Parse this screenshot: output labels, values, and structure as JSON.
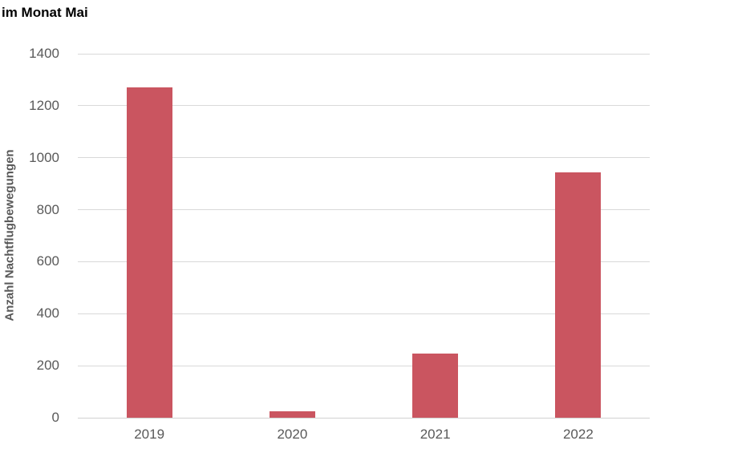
{
  "chart_data": {
    "type": "bar",
    "title": "im Monat Mai",
    "xlabel": "",
    "ylabel": "Anzahl Nachtflugbewegungen",
    "categories": [
      "2019",
      "2020",
      "2021",
      "2022"
    ],
    "values": [
      1270,
      25,
      248,
      945
    ],
    "yticks": [
      0,
      200,
      400,
      600,
      800,
      1000,
      1200,
      1400
    ],
    "ylim": [
      0,
      1400
    ],
    "grid": true,
    "legend_position": "none",
    "bar_color": "#ca5560",
    "gridline_color": "#d9d9d9",
    "axis_text_color": "#595959",
    "title_color": "#000000"
  }
}
